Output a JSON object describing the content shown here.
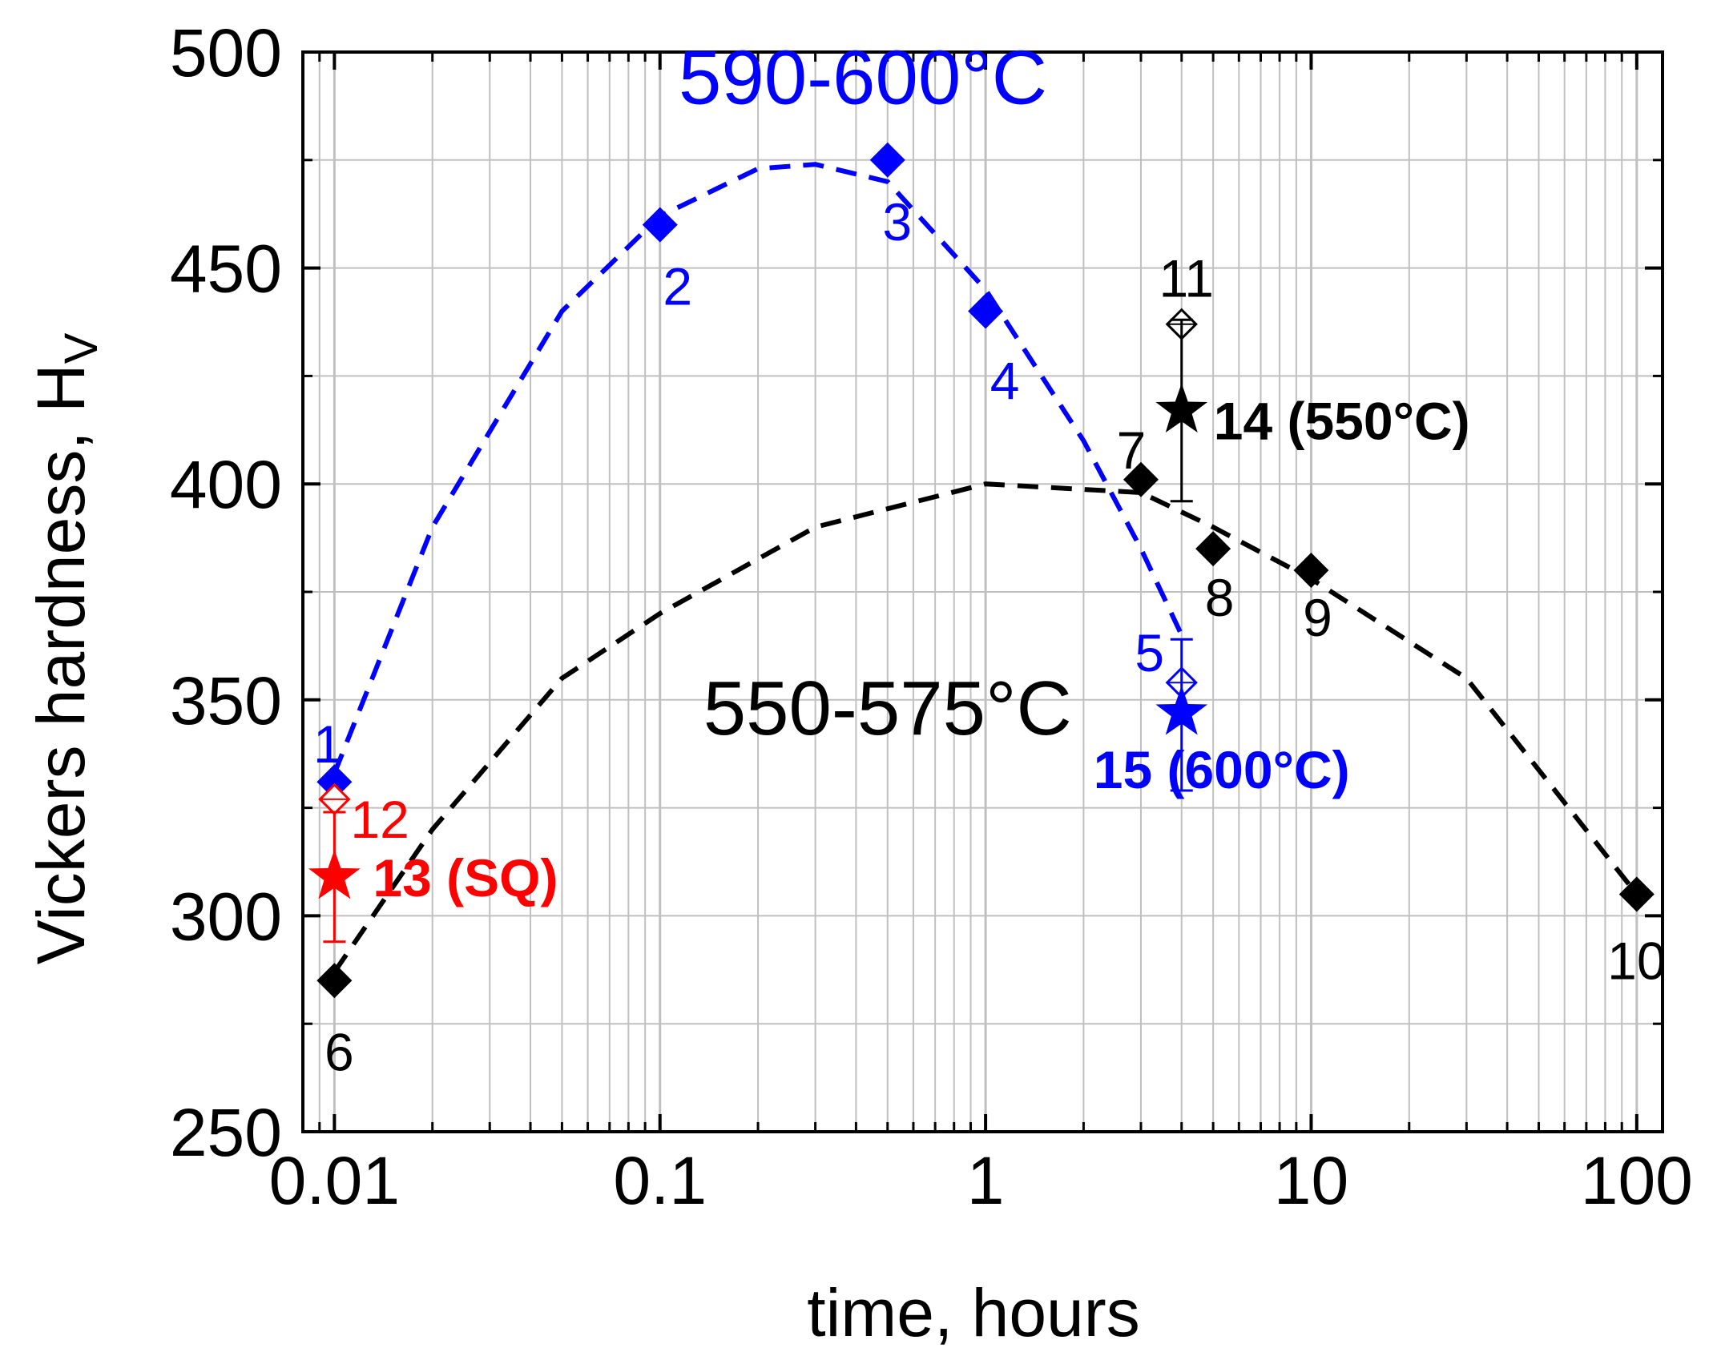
{
  "chart_data": {
    "type": "scatter",
    "xlabel": "time, hours",
    "ylabel": "Vickers hardness, H",
    "ylabel_subscript": "V",
    "x_scale": "log",
    "xlim": [
      0.008,
      120
    ],
    "ylim": [
      250,
      500
    ],
    "x_ticks": [
      0.01,
      0.1,
      1,
      10,
      100
    ],
    "x_tick_labels": [
      "0.01",
      "0.1",
      "1",
      "10",
      "100"
    ],
    "y_ticks": [
      250,
      300,
      350,
      400,
      450,
      500
    ],
    "y_tick_labels": [
      "250",
      "300",
      "350",
      "400",
      "450",
      "500"
    ],
    "grid": true,
    "series": [
      {
        "color": "#0000ff",
        "marker": "diamond",
        "points": [
          {
            "x": 0.01,
            "y": 331,
            "label": "1"
          },
          {
            "x": 0.1,
            "y": 460,
            "label": "2"
          },
          {
            "x": 0.5,
            "y": 475,
            "label": "3"
          },
          {
            "x": 1,
            "y": 440,
            "label": "4"
          }
        ]
      },
      {
        "color": "#000000",
        "marker": "diamond",
        "points": [
          {
            "x": 0.01,
            "y": 285,
            "label": "6"
          },
          {
            "x": 3,
            "y": 401,
            "label": "7"
          },
          {
            "x": 5,
            "y": 385,
            "label": "8"
          },
          {
            "x": 10,
            "y": 380,
            "label": "9"
          },
          {
            "x": 100,
            "y": 305,
            "label": "10"
          }
        ]
      },
      {
        "color": "#000000",
        "marker": "diamond-open",
        "points": [
          {
            "x": 4,
            "y": 437,
            "label": "11"
          }
        ]
      },
      {
        "color": "#ff0000",
        "marker": "diamond-open",
        "points": [
          {
            "x": 0.01,
            "y": 327,
            "label": "12"
          }
        ]
      },
      {
        "color": "#0000ff",
        "marker": "diamond-open",
        "points": [
          {
            "x": 4,
            "y": 354,
            "label": "5"
          }
        ]
      },
      {
        "color": "#ff0000",
        "marker": "star",
        "points": [
          {
            "x": 0.01,
            "y": 309,
            "yerr": [
              294,
              324
            ],
            "label": "13 (SQ)"
          }
        ]
      },
      {
        "color": "#000000",
        "marker": "star",
        "points": [
          {
            "x": 4,
            "y": 417,
            "yerr": [
              396,
              438
            ],
            "label": "14 (550°C)"
          }
        ]
      },
      {
        "color": "#0000ff",
        "marker": "star",
        "points": [
          {
            "x": 4,
            "y": 347,
            "yerr": [
              329,
              364
            ],
            "label": "15 (600°C)"
          }
        ]
      }
    ],
    "curves": [
      {
        "label": "590-600°C",
        "color": "#0000ff",
        "style": "dashed",
        "points": [
          [
            0.01,
            333
          ],
          [
            0.02,
            390
          ],
          [
            0.05,
            440
          ],
          [
            0.1,
            462
          ],
          [
            0.2,
            473
          ],
          [
            0.3,
            474
          ],
          [
            0.5,
            470
          ],
          [
            1,
            445
          ],
          [
            2,
            410
          ],
          [
            3,
            385
          ],
          [
            4,
            365
          ]
        ]
      },
      {
        "label": "550-575°C",
        "color": "#000000",
        "style": "dashed",
        "points": [
          [
            0.01,
            287
          ],
          [
            0.02,
            320
          ],
          [
            0.05,
            355
          ],
          [
            0.1,
            370
          ],
          [
            0.3,
            390
          ],
          [
            1,
            400
          ],
          [
            3,
            398
          ],
          [
            5,
            390
          ],
          [
            10,
            378
          ],
          [
            30,
            355
          ],
          [
            100,
            305
          ]
        ]
      }
    ],
    "annotations": [
      {
        "text": "590-600°C",
        "x": 0.42,
        "y": 488,
        "color": "#0000ff"
      },
      {
        "text": "550-575°C",
        "x": 0.5,
        "y": 342,
        "color": "#000000"
      }
    ]
  }
}
